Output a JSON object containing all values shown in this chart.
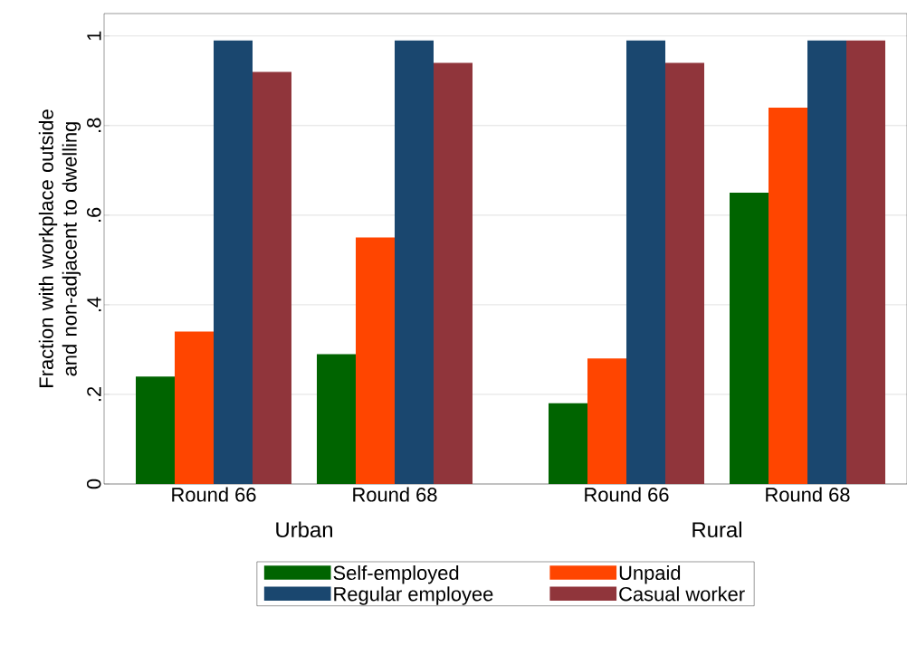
{
  "chart_data": {
    "type": "bar",
    "ylabel": "Fraction with workplace outside and non-adjacent to dwelling",
    "categories": [
      "Round 66",
      "Round 68",
      "Round 66",
      "Round 68"
    ],
    "series": [
      {
        "name": "Self-employed",
        "color": "#006400",
        "values": [
          0.24,
          0.29,
          0.18,
          0.65
        ]
      },
      {
        "name": "Unpaid",
        "color": "#ff4500",
        "values": [
          0.34,
          0.55,
          0.28,
          0.84
        ]
      },
      {
        "name": "Regular employee",
        "color": "#1a476f",
        "values": [
          0.99,
          0.99,
          0.99,
          0.99
        ]
      },
      {
        "name": "Casual worker",
        "color": "#90353b",
        "values": [
          0.92,
          0.94,
          0.94,
          0.99
        ]
      }
    ],
    "annotations": [
      "Urban",
      "Rural"
    ],
    "ylim": [
      0,
      1.05
    ],
    "yticks": [
      {
        "value": 0,
        "label": "0"
      },
      {
        "value": 0.2,
        "label": ".2"
      },
      {
        "value": 0.4,
        "label": ".4"
      },
      {
        "value": 0.6,
        "label": ".6"
      },
      {
        "value": 0.8,
        "label": ".8"
      },
      {
        "value": 1,
        "label": "1"
      }
    ],
    "grid": "y",
    "legend": "bottom"
  }
}
